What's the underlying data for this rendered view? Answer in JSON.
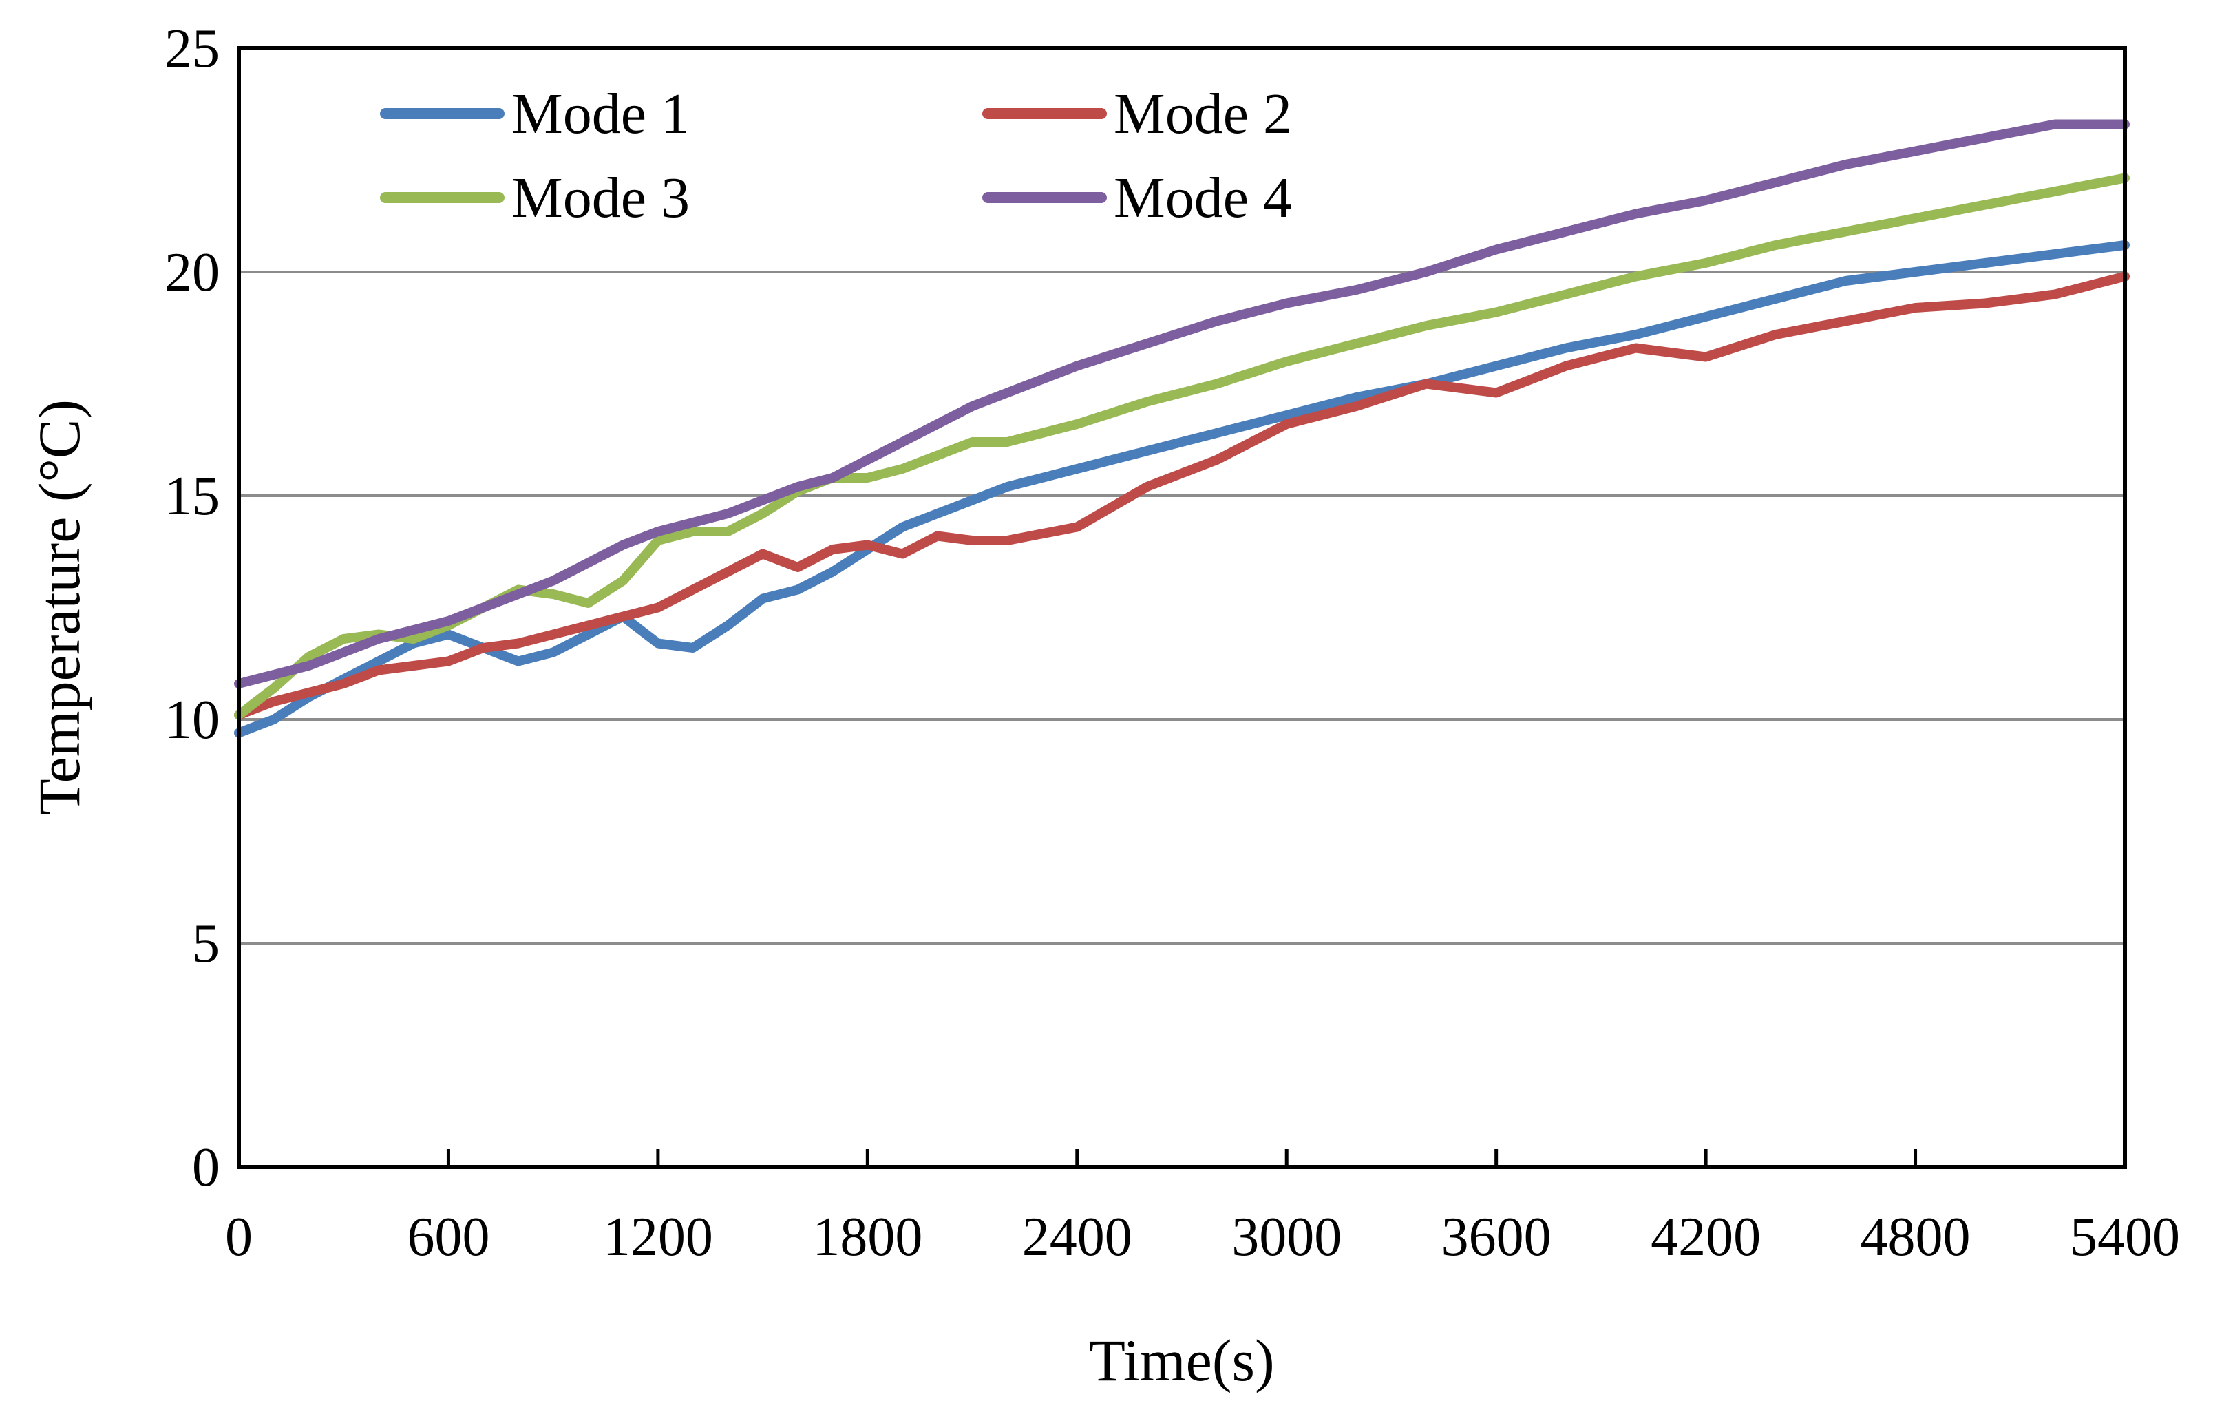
{
  "chart_data": {
    "type": "line",
    "title": "",
    "xlabel": "Time(s)",
    "ylabel": "Temperature (°C)",
    "xlim": [
      0,
      5400
    ],
    "ylim": [
      0,
      25
    ],
    "xticks": [
      "0",
      "600",
      "1200",
      "1800",
      "2400",
      "3000",
      "3600",
      "4200",
      "4800",
      "5400"
    ],
    "yticks": [
      "0",
      "5",
      "10",
      "15",
      "20",
      "25"
    ],
    "grid": "horizontal",
    "legend": "top-left",
    "series": [
      {
        "name": "Mode 1",
        "color": "#4a7ebb",
        "x": [
          0,
          100,
          200,
          300,
          400,
          500,
          600,
          700,
          800,
          900,
          1000,
          1100,
          1200,
          1300,
          1400,
          1500,
          1600,
          1700,
          1800,
          1900,
          2000,
          2100,
          2200,
          2400,
          2600,
          2800,
          3000,
          3200,
          3400,
          3600,
          3800,
          4000,
          4200,
          4400,
          4600,
          4800,
          5000,
          5200,
          5400
        ],
        "values": [
          9.7,
          10.0,
          10.5,
          10.9,
          11.3,
          11.7,
          11.9,
          11.6,
          11.3,
          11.5,
          11.9,
          12.3,
          11.7,
          11.6,
          12.1,
          12.7,
          12.9,
          13.3,
          13.8,
          14.3,
          14.6,
          14.9,
          15.2,
          15.6,
          16.0,
          16.4,
          16.8,
          17.2,
          17.5,
          17.9,
          18.3,
          18.6,
          19.0,
          19.4,
          19.8,
          20.0,
          20.2,
          20.4,
          20.6
        ]
      },
      {
        "name": "Mode 2",
        "color": "#be4b48",
        "x": [
          0,
          100,
          200,
          300,
          400,
          500,
          600,
          700,
          800,
          900,
          1000,
          1100,
          1200,
          1300,
          1400,
          1500,
          1600,
          1700,
          1800,
          1900,
          2000,
          2100,
          2200,
          2400,
          2600,
          2800,
          3000,
          3200,
          3400,
          3600,
          3800,
          4000,
          4200,
          4400,
          4600,
          4800,
          5000,
          5200,
          5400
        ],
        "values": [
          10.1,
          10.4,
          10.6,
          10.8,
          11.1,
          11.2,
          11.3,
          11.6,
          11.7,
          11.9,
          12.1,
          12.3,
          12.5,
          12.9,
          13.3,
          13.7,
          13.4,
          13.8,
          13.9,
          13.7,
          14.1,
          14.0,
          14.0,
          14.3,
          15.2,
          15.8,
          16.6,
          17.0,
          17.5,
          17.3,
          17.9,
          18.3,
          18.1,
          18.6,
          18.9,
          19.2,
          19.3,
          19.5,
          19.9
        ]
      },
      {
        "name": "Mode 3",
        "color": "#98b954",
        "x": [
          0,
          100,
          200,
          300,
          400,
          500,
          600,
          700,
          800,
          900,
          1000,
          1100,
          1200,
          1300,
          1400,
          1500,
          1600,
          1700,
          1800,
          1900,
          2000,
          2100,
          2200,
          2400,
          2600,
          2800,
          3000,
          3200,
          3400,
          3600,
          3800,
          4000,
          4200,
          4400,
          4600,
          4800,
          5000,
          5200,
          5400
        ],
        "values": [
          10.1,
          10.7,
          11.4,
          11.8,
          11.9,
          11.8,
          12.1,
          12.5,
          12.9,
          12.8,
          12.6,
          13.1,
          14.0,
          14.2,
          14.2,
          14.6,
          15.1,
          15.4,
          15.4,
          15.6,
          15.9,
          16.2,
          16.2,
          16.6,
          17.1,
          17.5,
          18.0,
          18.4,
          18.8,
          19.1,
          19.5,
          19.9,
          20.2,
          20.6,
          20.9,
          21.2,
          21.5,
          21.8,
          22.1
        ]
      },
      {
        "name": "Mode 4",
        "color": "#7d5fa0",
        "x": [
          0,
          100,
          200,
          300,
          400,
          500,
          600,
          700,
          800,
          900,
          1000,
          1100,
          1200,
          1300,
          1400,
          1500,
          1600,
          1700,
          1800,
          1900,
          2000,
          2100,
          2200,
          2400,
          2600,
          2800,
          3000,
          3200,
          3400,
          3600,
          3800,
          4000,
          4200,
          4400,
          4600,
          4800,
          5000,
          5200,
          5400
        ],
        "values": [
          10.8,
          11.0,
          11.2,
          11.5,
          11.8,
          12.0,
          12.2,
          12.5,
          12.8,
          13.1,
          13.5,
          13.9,
          14.2,
          14.4,
          14.6,
          14.9,
          15.2,
          15.4,
          15.8,
          16.2,
          16.6,
          17.0,
          17.3,
          17.9,
          18.4,
          18.9,
          19.3,
          19.6,
          20.0,
          20.5,
          20.9,
          21.3,
          21.6,
          22.0,
          22.4,
          22.7,
          23.0,
          23.3,
          23.3
        ]
      }
    ]
  }
}
